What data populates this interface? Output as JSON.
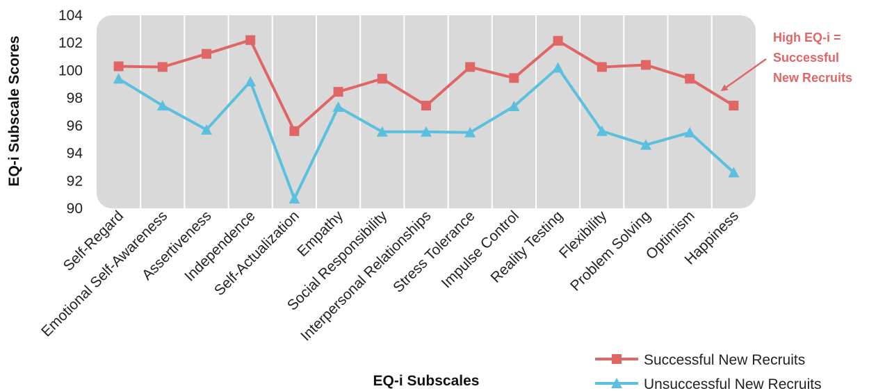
{
  "chart_data": {
    "type": "line",
    "title": "",
    "xlabel": "EQ-i Subscales",
    "ylabel": "EQ-i Subscale Scores",
    "ylim": [
      90,
      104
    ],
    "yticks": [
      90,
      92,
      94,
      96,
      98,
      100,
      102,
      104
    ],
    "grid": "vertical",
    "legend_placement": "bottom-right",
    "categories": [
      "Self-Regard",
      "Emotional Self-Awareness",
      "Assertiveness",
      "Independence",
      "Self-Actualization",
      "Empathy",
      "Social Responsibility",
      "Interpersonal Relationships",
      "Stress Tolerance",
      "Impulse Control",
      "Reality Testing",
      "Flexibility",
      "Problem Solving",
      "Optimism",
      "Happiness"
    ],
    "series": [
      {
        "name": "Successful New Recruits",
        "color": "#e06666",
        "marker": "square",
        "values": [
          100.3,
          100.25,
          101.2,
          102.2,
          95.6,
          98.45,
          99.4,
          97.45,
          100.25,
          99.45,
          102.15,
          100.25,
          100.4,
          99.4,
          97.45
        ]
      },
      {
        "name": "Unsuccessful New Recruits",
        "color": "#5bc0de",
        "marker": "triangle",
        "values": [
          99.4,
          97.45,
          95.7,
          99.2,
          90.7,
          97.35,
          95.55,
          95.55,
          95.5,
          97.4,
          100.2,
          95.6,
          94.6,
          95.5,
          92.6
        ]
      }
    ],
    "annotation": {
      "lines": [
        "High EQ-i =",
        "Successful",
        "New Recruits"
      ],
      "color": "#e06666"
    },
    "plot_background": "#d9d9d9"
  }
}
